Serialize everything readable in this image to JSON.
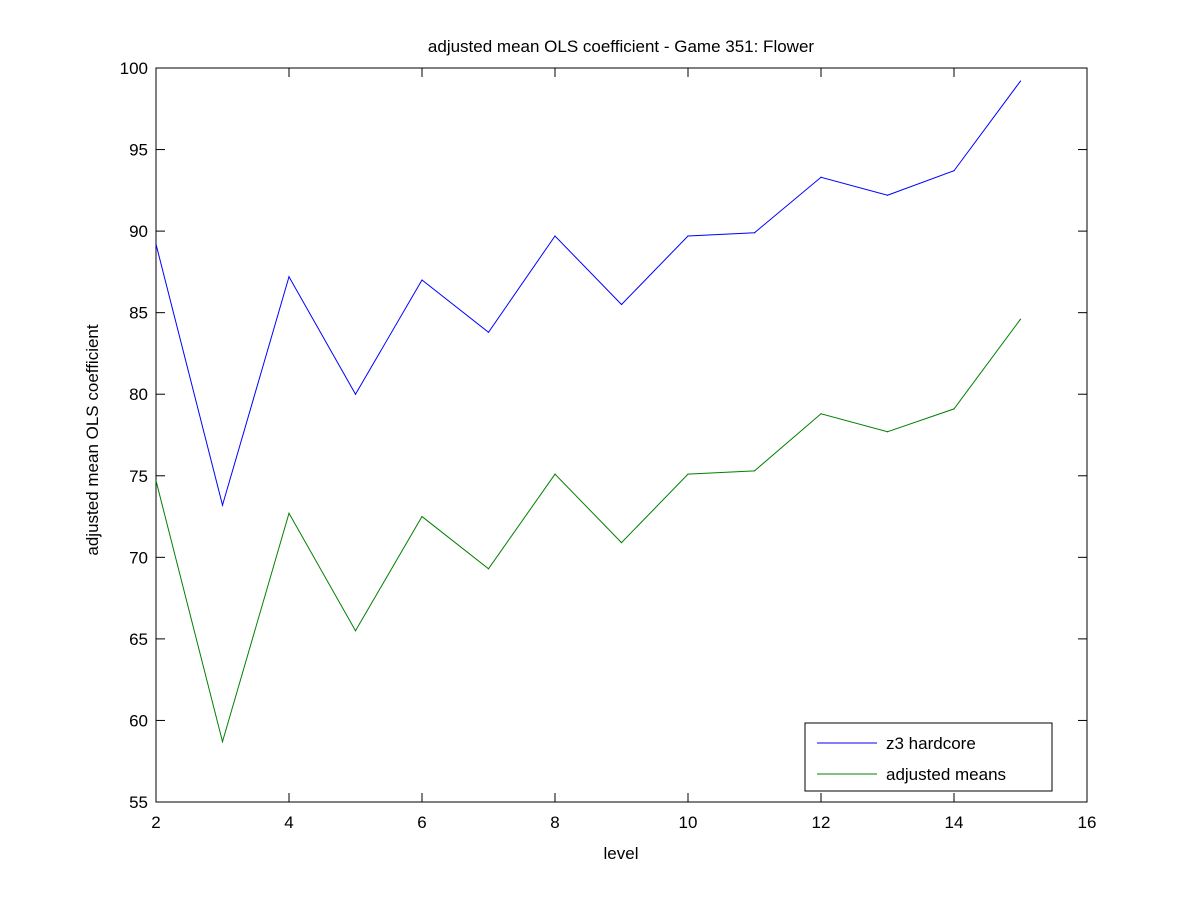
{
  "chart_data": {
    "type": "line",
    "title": "adjusted mean OLS coefficient - Game 351: Flower",
    "xlabel": "level",
    "ylabel": "adjusted mean OLS coefficient",
    "xlim": [
      2,
      16
    ],
    "ylim": [
      55,
      100
    ],
    "xticks": [
      2,
      4,
      6,
      8,
      10,
      12,
      14,
      16
    ],
    "yticks": [
      55,
      60,
      65,
      70,
      75,
      80,
      85,
      90,
      95,
      100
    ],
    "grid": false,
    "legend_position": "bottom-right",
    "x": [
      2,
      3,
      4,
      5,
      6,
      7,
      8,
      9,
      10,
      11,
      12,
      13,
      14,
      15
    ],
    "series": [
      {
        "name": "z3 hardcore",
        "color": "#0000ff",
        "values": [
          89.2,
          73.2,
          87.2,
          80.0,
          87.0,
          83.8,
          89.7,
          85.5,
          89.7,
          89.9,
          93.3,
          92.2,
          93.7,
          99.2
        ]
      },
      {
        "name": "adjusted means",
        "color": "#008000",
        "values": [
          74.7,
          58.7,
          72.7,
          65.5,
          72.5,
          69.3,
          75.1,
          70.9,
          75.1,
          75.3,
          78.8,
          77.7,
          79.1,
          84.6
        ]
      }
    ]
  }
}
